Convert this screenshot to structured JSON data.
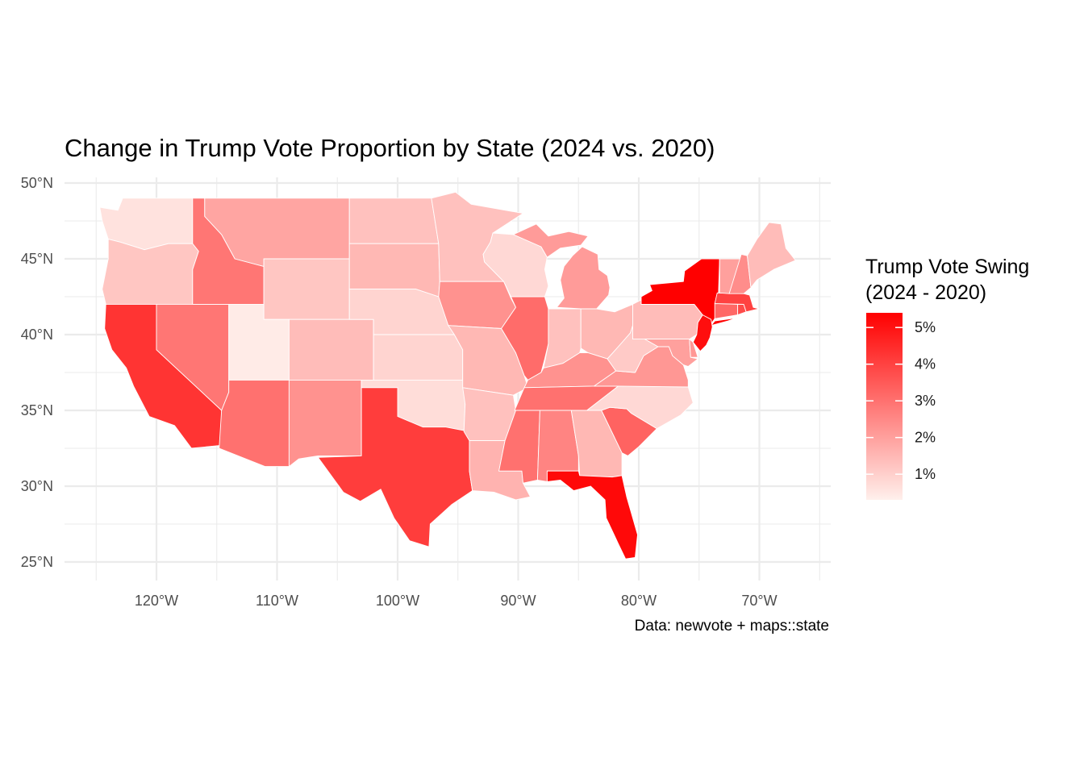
{
  "title": "Change in Trump Vote Proportion by State (2024 vs. 2020)",
  "caption": "Data: newvote + maps::state",
  "legend": {
    "title_line1": "Trump Vote Swing",
    "title_line2": "(2024 - 2020)",
    "min": 0.3,
    "max": 5.4,
    "labels": [
      {
        "value": 1,
        "label": "1%"
      },
      {
        "value": 2,
        "label": "2%"
      },
      {
        "value": 3,
        "label": "3%"
      },
      {
        "value": 4,
        "label": "4%"
      },
      {
        "value": 5,
        "label": "5%"
      }
    ],
    "low_color": "#fff0ec",
    "high_color": "#ff0000"
  },
  "axes": {
    "x_ticks": [
      {
        "value": -120,
        "label": "120°W"
      },
      {
        "value": -110,
        "label": "110°W"
      },
      {
        "value": -100,
        "label": "100°W"
      },
      {
        "value": -90,
        "label": "90°W"
      },
      {
        "value": -80,
        "label": "80°W"
      },
      {
        "value": -70,
        "label": "70°W"
      }
    ],
    "y_ticks": [
      {
        "value": 25,
        "label": "25°N"
      },
      {
        "value": 30,
        "label": "30°N"
      },
      {
        "value": 35,
        "label": "35°N"
      },
      {
        "value": 40,
        "label": "40°N"
      },
      {
        "value": 45,
        "label": "45°N"
      },
      {
        "value": 50,
        "label": "50°N"
      }
    ],
    "xlim": [
      -127.5,
      -65
    ],
    "ylim": [
      24,
      50.2
    ],
    "grid": true
  },
  "chart_data": {
    "type": "choropleth",
    "region": "contiguous United States",
    "value_unit": "percentage points",
    "states": [
      {
        "state": "washington",
        "swing": 0.6
      },
      {
        "state": "oregon",
        "swing": 1.2
      },
      {
        "state": "california",
        "swing": 4.3
      },
      {
        "state": "nevada",
        "swing": 2.9
      },
      {
        "state": "idaho",
        "swing": 2.9
      },
      {
        "state": "montana",
        "swing": 1.9
      },
      {
        "state": "wyoming",
        "swing": 1.2
      },
      {
        "state": "utah",
        "swing": 0.4
      },
      {
        "state": "arizona",
        "swing": 3.0
      },
      {
        "state": "colorado",
        "swing": 1.4
      },
      {
        "state": "new mexico",
        "swing": 2.3
      },
      {
        "state": "north dakota",
        "swing": 1.3
      },
      {
        "state": "south dakota",
        "swing": 1.5
      },
      {
        "state": "nebraska",
        "swing": 0.9
      },
      {
        "state": "kansas",
        "swing": 0.9
      },
      {
        "state": "oklahoma",
        "swing": 0.7
      },
      {
        "state": "texas",
        "swing": 4.1
      },
      {
        "state": "minnesota",
        "swing": 1.3
      },
      {
        "state": "iowa",
        "swing": 2.3
      },
      {
        "state": "missouri",
        "swing": 1.5
      },
      {
        "state": "arkansas",
        "swing": 1.3
      },
      {
        "state": "louisiana",
        "swing": 1.6
      },
      {
        "state": "wisconsin",
        "swing": 0.8
      },
      {
        "state": "illinois",
        "swing": 3.1
      },
      {
        "state": "michigan",
        "swing": 2.1
      },
      {
        "state": "indiana",
        "swing": 1.3
      },
      {
        "state": "ohio",
        "swing": 1.5
      },
      {
        "state": "kentucky",
        "swing": 2.3
      },
      {
        "state": "tennessee",
        "swing": 3.0
      },
      {
        "state": "mississippi",
        "swing": 3.0
      },
      {
        "state": "alabama",
        "swing": 2.6
      },
      {
        "state": "georgia",
        "swing": 1.5
      },
      {
        "state": "florida",
        "swing": 5.2
      },
      {
        "state": "south carolina",
        "swing": 3.3
      },
      {
        "state": "north carolina",
        "swing": 0.8
      },
      {
        "state": "virginia",
        "swing": 2.2
      },
      {
        "state": "west virginia",
        "swing": 1.1
      },
      {
        "state": "pennsylvania",
        "swing": 1.4
      },
      {
        "state": "new york",
        "swing": 5.4
      },
      {
        "state": "new jersey",
        "swing": 5.1
      },
      {
        "state": "maryland",
        "swing": 2.0
      },
      {
        "state": "delaware",
        "swing": 2.2
      },
      {
        "state": "connecticut",
        "swing": 3.2
      },
      {
        "state": "rhode island",
        "swing": 3.8
      },
      {
        "state": "massachusetts",
        "swing": 4.0
      },
      {
        "state": "vermont",
        "swing": 2.0
      },
      {
        "state": "new hampshire",
        "swing": 2.4
      },
      {
        "state": "maine",
        "swing": 1.4
      }
    ]
  }
}
